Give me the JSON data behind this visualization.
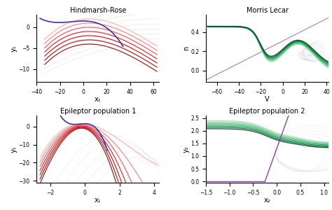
{
  "panels": [
    {
      "title": "Hindmarsh-Rose",
      "xlabel": "x₁",
      "ylabel": "y₁",
      "xlim": [
        -40,
        65
      ],
      "ylim": [
        -13,
        3
      ]
    },
    {
      "title": "Morris Lecar",
      "xlabel": "V",
      "ylabel": "n",
      "xlim": [
        -70,
        42
      ],
      "ylim": [
        -0.12,
        0.58
      ]
    },
    {
      "title": "Epileptor population 1",
      "xlabel": "x₁",
      "ylabel": "y₁",
      "xlim": [
        -2.8,
        4.3
      ],
      "ylim": [
        -31,
        6
      ]
    },
    {
      "title": "Epileptor population 2",
      "xlabel": "x₂",
      "ylabel": "y₂",
      "xlim": [
        -1.5,
        1.1
      ],
      "ylim": [
        -0.05,
        2.6
      ]
    }
  ],
  "red_shades": [
    "#ffaaaa",
    "#ff7777",
    "#ff4444",
    "#ee1111",
    "#cc0000",
    "#aa0000",
    "#880000"
  ],
  "green_shades": [
    "#aaddbb",
    "#77cc99",
    "#44bb77",
    "#22aa55",
    "#008844",
    "#006633",
    "#004422"
  ],
  "blue_color": "#3333bb",
  "purple_color": "#8844aa",
  "gray_color": "#cccccc",
  "gray_alpha": 0.45
}
